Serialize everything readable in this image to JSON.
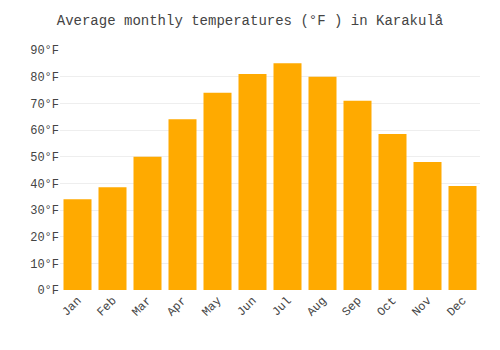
{
  "chart_data": {
    "type": "bar",
    "title": "Average monthly temperatures (°F ) in Karakulå",
    "categories": [
      "Jan",
      "Feb",
      "Mar",
      "Apr",
      "May",
      "Jun",
      "Jul",
      "Aug",
      "Sep",
      "Oct",
      "Nov",
      "Dec"
    ],
    "values": [
      34,
      38.5,
      50,
      64,
      74,
      81,
      85,
      80,
      71,
      58.5,
      48,
      39
    ],
    "color": "#FFAA00",
    "ylim": [
      0,
      90
    ],
    "yticks": [
      {
        "value": 0,
        "label": "0°F"
      },
      {
        "value": 10,
        "label": "10°F"
      },
      {
        "value": 20,
        "label": "20°F"
      },
      {
        "value": 30,
        "label": "30°F"
      },
      {
        "value": 40,
        "label": "40°F"
      },
      {
        "value": 50,
        "label": "50°F"
      },
      {
        "value": 60,
        "label": "60°F"
      },
      {
        "value": 70,
        "label": "70°F"
      },
      {
        "value": 80,
        "label": "80°F"
      },
      {
        "value": 90,
        "label": "90°F"
      }
    ],
    "grid": true
  }
}
